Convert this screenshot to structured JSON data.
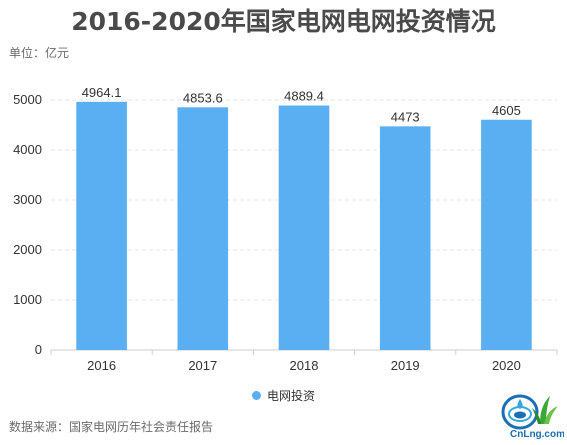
{
  "title": "2016-2020年国家电网电网投资情况",
  "unit_label": "单位：亿元",
  "source_label": "数据来源：国家电网历年社会责任报告",
  "logo": {
    "text": "CnLng.com",
    "icon": "water-drop-logo"
  },
  "colors": {
    "bar": "#5aaff2",
    "grid": "#e6e6e6",
    "axis": "#cccccc",
    "text": "#333333"
  },
  "chart_data": {
    "type": "bar",
    "title": "2016-2020年国家电网电网投资情况",
    "categories": [
      "2016",
      "2017",
      "2018",
      "2019",
      "2020"
    ],
    "series": [
      {
        "name": "电网投资",
        "values": [
          4964.1,
          4853.6,
          4889.4,
          4473,
          4605
        ],
        "labels": [
          "4964.1",
          "4853.6",
          "4889.4",
          "4473",
          "4605"
        ]
      }
    ],
    "ylim": [
      0,
      5000
    ],
    "yticks": [
      0,
      1000,
      2000,
      3000,
      4000,
      5000
    ],
    "grid": true,
    "legend": "bottom"
  }
}
